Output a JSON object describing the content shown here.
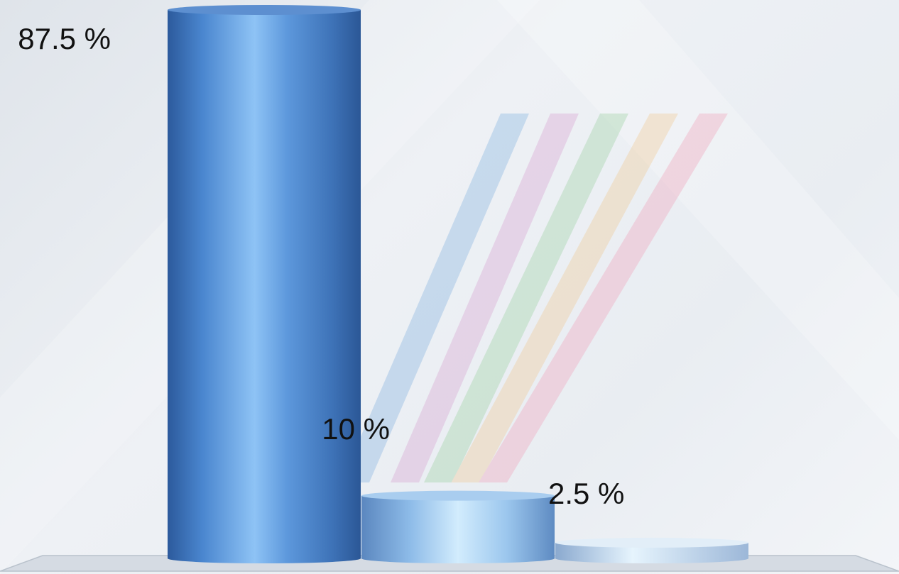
{
  "chart_data": {
    "type": "bar",
    "categories": [
      "",
      "",
      ""
    ],
    "values": [
      87.5,
      10,
      2.5
    ],
    "data_labels": [
      "87.5 %",
      "10 %",
      "2.5 %"
    ],
    "title": "",
    "xlabel": "",
    "ylabel": "",
    "ylim": [
      0,
      87.5
    ],
    "style": "3d-cylinder",
    "grid": false,
    "legend": "none",
    "colors": {
      "bar_dark": "#2f62a8",
      "bar_mid": "#5b95d8",
      "bar_light": "#8ec3f5",
      "bar_pale": "#cfe9fb",
      "floor": "#d5dbe3"
    }
  },
  "watermark": {
    "icon": "striped-v-logo-icon",
    "stripe_colors": [
      "#7fb0e0",
      "#d7a0d0",
      "#9ad0a0",
      "#f0c890",
      "#f0a0b8"
    ]
  }
}
